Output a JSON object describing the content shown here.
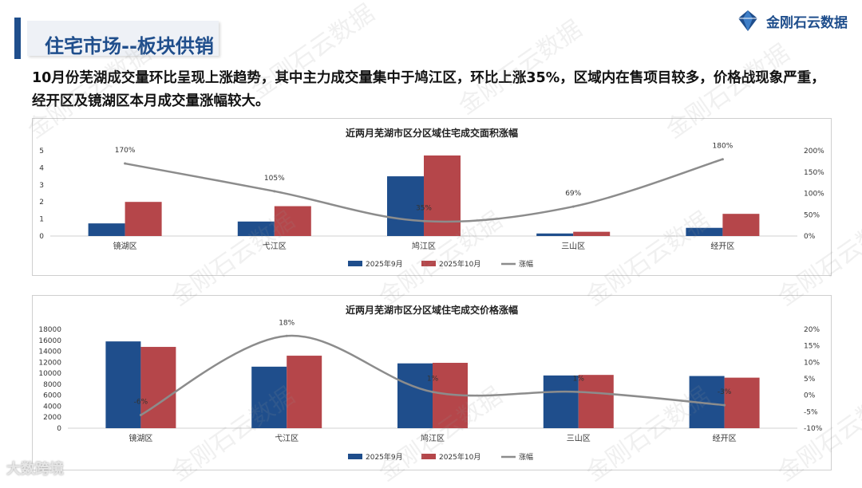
{
  "header": {
    "title": "住宅市场--板块供销",
    "brand_name": "金刚石云数据"
  },
  "intro_text": "10月份芜湖成交量环比呈现上涨趋势，其中主力成交量集中于鸠江区，环比上涨35%，区域内在售项目较多，价格战现象严重，经开区及镜湖区本月成交量涨幅较大。",
  "watermark_text": "金刚石云数据",
  "footer_mark": "大数跨境",
  "colors": {
    "sep": "#1f4e8c",
    "oct": "#b5464a",
    "line": "#8c8c8c"
  },
  "chart_data": [
    {
      "type": "bar",
      "title": "近两月芜湖市区分区域住宅成交面积涨幅",
      "categories": [
        "镜湖区",
        "弋江区",
        "鸠江区",
        "三山区",
        "经开区"
      ],
      "series": [
        {
          "name": "2025年9月",
          "values": [
            0.74,
            0.85,
            3.5,
            0.15,
            0.48
          ]
        },
        {
          "name": "2025年10月",
          "values": [
            2.0,
            1.75,
            4.72,
            0.25,
            1.3
          ]
        }
      ],
      "line": {
        "name": "涨幅",
        "values": [
          170,
          105,
          35,
          69,
          180
        ],
        "labels": [
          "170%",
          "105%",
          "35%",
          "69%",
          "180%"
        ]
      },
      "yticks_left": [
        "0",
        "1",
        "2",
        "3",
        "4",
        "5"
      ],
      "ylim_left": [
        0,
        5
      ],
      "yticks_right": [
        "0%",
        "50%",
        "100%",
        "150%",
        "200%"
      ],
      "ylim_right": [
        0,
        200
      ],
      "legend": [
        "2025年9月",
        "2025年10月",
        "涨幅"
      ]
    },
    {
      "type": "bar",
      "title": "近两月芜湖市区分区域住宅成交价格涨幅",
      "categories": [
        "镜湖区",
        "弋江区",
        "鸠江区",
        "三山区",
        "经开区"
      ],
      "series": [
        {
          "name": "2025年9月",
          "values": [
            15800,
            11200,
            11800,
            9600,
            9500
          ]
        },
        {
          "name": "2025年10月",
          "values": [
            14800,
            13200,
            11900,
            9700,
            9200
          ]
        }
      ],
      "line": {
        "name": "涨幅",
        "values": [
          -6,
          18,
          1,
          1,
          -3
        ],
        "labels": [
          "-6%",
          "18%",
          "1%",
          "1%",
          "-3%"
        ]
      },
      "yticks_left": [
        "0",
        "2000",
        "4000",
        "6000",
        "8000",
        "10000",
        "12000",
        "14000",
        "16000",
        "18000"
      ],
      "ylim_left": [
        0,
        18000
      ],
      "yticks_right": [
        "-10%",
        "-5%",
        "0%",
        "5%",
        "10%",
        "15%",
        "20%"
      ],
      "ylim_right": [
        -10,
        20
      ],
      "legend": [
        "2025年9月",
        "2025年10月",
        "涨幅"
      ]
    }
  ]
}
